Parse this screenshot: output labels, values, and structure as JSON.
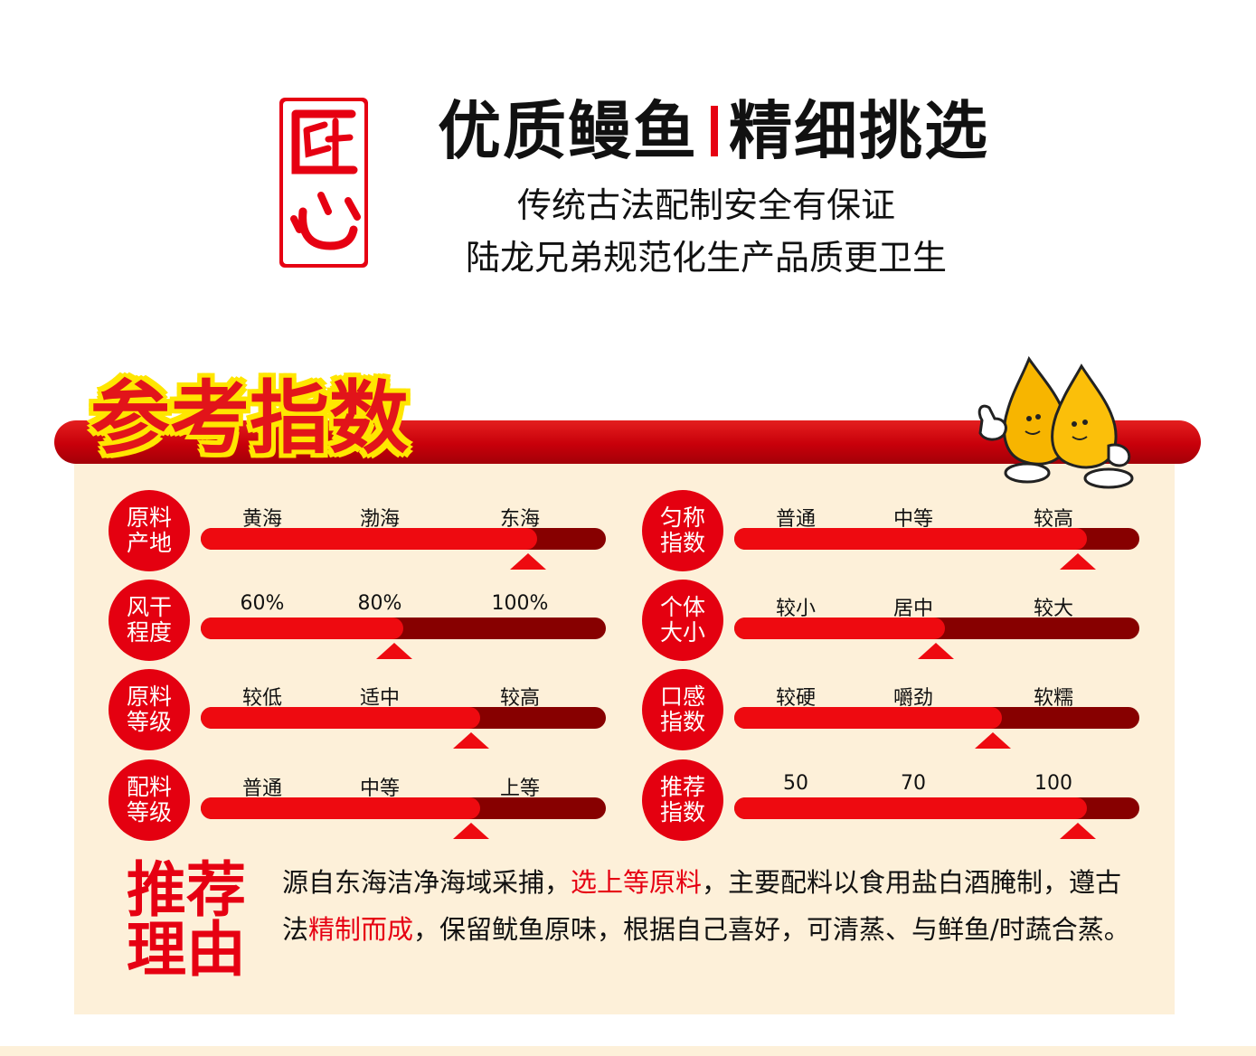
{
  "header": {
    "seal_chars": "匠心",
    "headline_left": "优质鳗鱼",
    "headline_right": "精细挑选",
    "subtitle_1": "传统古法配制安全有保证",
    "subtitle_2": "陆龙兄弟规范化生产品质更卫生"
  },
  "section_title": "参考指数",
  "colors": {
    "red": "#e40010",
    "dark_red": "#870000",
    "cream": "#fdf0d9",
    "yellow": "#ffe600"
  },
  "ratings": [
    {
      "title": "原料产地",
      "labels": [
        "黄海",
        "渤海",
        "东海"
      ],
      "level": 0.83
    },
    {
      "title": "风干程度",
      "labels": [
        "60%",
        "80%",
        "100%"
      ],
      "level": 0.5
    },
    {
      "title": "原料等级",
      "labels": [
        "较低",
        "适中",
        "较高"
      ],
      "level": 0.69
    },
    {
      "title": "配料等级",
      "labels": [
        "普通",
        "中等",
        "上等"
      ],
      "level": 0.69
    },
    {
      "title": "匀称指数",
      "labels": [
        "普通",
        "中等",
        "较高"
      ],
      "level": 0.87
    },
    {
      "title": "个体大小",
      "labels": [
        "较小",
        "居中",
        "较大"
      ],
      "level": 0.52
    },
    {
      "title": "口感指数",
      "labels": [
        "较硬",
        "嚼劲",
        "软糯"
      ],
      "level": 0.66
    },
    {
      "title": "推荐指数",
      "labels": [
        "50",
        "70",
        "100"
      ],
      "level": 0.87
    }
  ],
  "recommendation": {
    "title_line1": "推荐",
    "title_line2": "理由",
    "text_1": "源自东海洁净海域采捕，",
    "highlight_1": "选上等原料",
    "text_2": "，主要配料以食用盐白酒腌制，遵古法",
    "highlight_2": "精制而成",
    "text_3": "，保留鱿鱼原味，根据自己喜好，可清蒸、与鲜鱼/时蔬合蒸。"
  }
}
